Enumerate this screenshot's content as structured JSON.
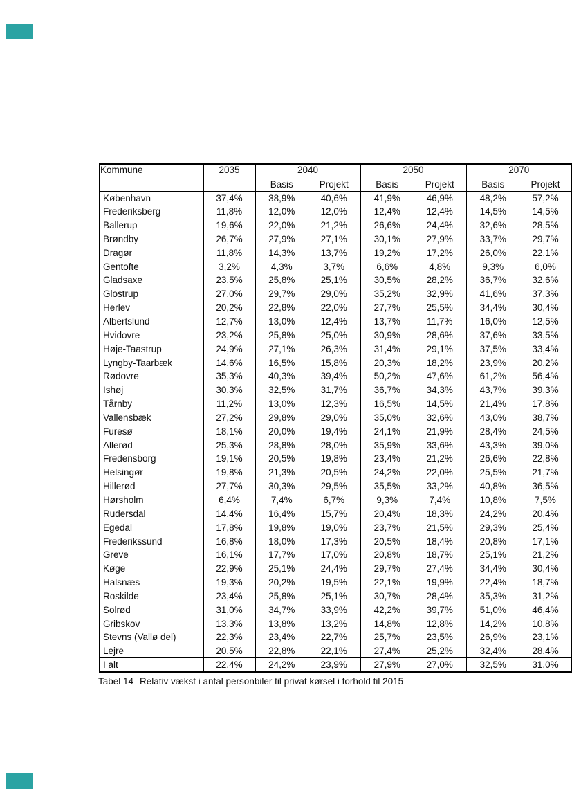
{
  "decorations": {
    "accent_color": "#2BA3A3",
    "border_color": "#000000",
    "text_color": "#101010"
  },
  "table": {
    "header": {
      "kommune_label": "Kommune",
      "year_2035": "2035",
      "year_2040": "2040",
      "year_2050": "2050",
      "year_2070": "2070",
      "basis_label": "Basis",
      "projekt_label": "Projekt"
    },
    "rows": [
      {
        "name": "København",
        "values": [
          "37,4%",
          "38,9%",
          "40,6%",
          "41,9%",
          "46,9%",
          "48,2%",
          "57,2%"
        ]
      },
      {
        "name": "Frederiksberg",
        "values": [
          "11,8%",
          "12,0%",
          "12,0%",
          "12,4%",
          "12,4%",
          "14,5%",
          "14,5%"
        ]
      },
      {
        "name": "Ballerup",
        "values": [
          "19,6%",
          "22,0%",
          "21,2%",
          "26,6%",
          "24,4%",
          "32,6%",
          "28,5%"
        ]
      },
      {
        "name": "Brøndby",
        "values": [
          "26,7%",
          "27,9%",
          "27,1%",
          "30,1%",
          "27,9%",
          "33,7%",
          "29,7%"
        ]
      },
      {
        "name": "Dragør",
        "values": [
          "11,8%",
          "14,3%",
          "13,7%",
          "19,2%",
          "17,2%",
          "26,0%",
          "22,1%"
        ]
      },
      {
        "name": "Gentofte",
        "values": [
          "3,2%",
          "4,3%",
          "3,7%",
          "6,6%",
          "4,8%",
          "9,3%",
          "6,0%"
        ]
      },
      {
        "name": "Gladsaxe",
        "values": [
          "23,5%",
          "25,8%",
          "25,1%",
          "30,5%",
          "28,2%",
          "36,7%",
          "32,6%"
        ]
      },
      {
        "name": "Glostrup",
        "values": [
          "27,0%",
          "29,7%",
          "29,0%",
          "35,2%",
          "32,9%",
          "41,6%",
          "37,3%"
        ]
      },
      {
        "name": "Herlev",
        "values": [
          "20,2%",
          "22,8%",
          "22,0%",
          "27,7%",
          "25,5%",
          "34,4%",
          "30,4%"
        ]
      },
      {
        "name": "Albertslund",
        "values": [
          "12,7%",
          "13,0%",
          "12,4%",
          "13,7%",
          "11,7%",
          "16,0%",
          "12,5%"
        ]
      },
      {
        "name": "Hvidovre",
        "values": [
          "23,2%",
          "25,8%",
          "25,0%",
          "30,9%",
          "28,6%",
          "37,6%",
          "33,5%"
        ]
      },
      {
        "name": "Høje-Taastrup",
        "values": [
          "24,9%",
          "27,1%",
          "26,3%",
          "31,4%",
          "29,1%",
          "37,5%",
          "33,4%"
        ]
      },
      {
        "name": "Lyngby-Taarbæk",
        "values": [
          "14,6%",
          "16,5%",
          "15,8%",
          "20,3%",
          "18,2%",
          "23,9%",
          "20,2%"
        ]
      },
      {
        "name": "Rødovre",
        "values": [
          "35,3%",
          "40,3%",
          "39,4%",
          "50,2%",
          "47,6%",
          "61,2%",
          "56,4%"
        ]
      },
      {
        "name": "Ishøj",
        "values": [
          "30,3%",
          "32,5%",
          "31,7%",
          "36,7%",
          "34,3%",
          "43,7%",
          "39,3%"
        ]
      },
      {
        "name": "Tårnby",
        "values": [
          "11,2%",
          "13,0%",
          "12,3%",
          "16,5%",
          "14,5%",
          "21,4%",
          "17,8%"
        ]
      },
      {
        "name": "Vallensbæk",
        "values": [
          "27,2%",
          "29,8%",
          "29,0%",
          "35,0%",
          "32,6%",
          "43,0%",
          "38,7%"
        ]
      },
      {
        "name": "Furesø",
        "values": [
          "18,1%",
          "20,0%",
          "19,4%",
          "24,1%",
          "21,9%",
          "28,4%",
          "24,5%"
        ]
      },
      {
        "name": "Allerød",
        "values": [
          "25,3%",
          "28,8%",
          "28,0%",
          "35,9%",
          "33,6%",
          "43,3%",
          "39,0%"
        ]
      },
      {
        "name": "Fredensborg",
        "values": [
          "19,1%",
          "20,5%",
          "19,8%",
          "23,4%",
          "21,2%",
          "26,6%",
          "22,8%"
        ]
      },
      {
        "name": "Helsingør",
        "values": [
          "19,8%",
          "21,3%",
          "20,5%",
          "24,2%",
          "22,0%",
          "25,5%",
          "21,7%"
        ]
      },
      {
        "name": "Hillerød",
        "values": [
          "27,7%",
          "30,3%",
          "29,5%",
          "35,5%",
          "33,2%",
          "40,8%",
          "36,5%"
        ]
      },
      {
        "name": "Hørsholm",
        "values": [
          "6,4%",
          "7,4%",
          "6,7%",
          "9,3%",
          "7,4%",
          "10,8%",
          "7,5%"
        ]
      },
      {
        "name": "Rudersdal",
        "values": [
          "14,4%",
          "16,4%",
          "15,7%",
          "20,4%",
          "18,3%",
          "24,2%",
          "20,4%"
        ]
      },
      {
        "name": "Egedal",
        "values": [
          "17,8%",
          "19,8%",
          "19,0%",
          "23,7%",
          "21,5%",
          "29,3%",
          "25,4%"
        ]
      },
      {
        "name": "Frederikssund",
        "values": [
          "16,8%",
          "18,0%",
          "17,3%",
          "20,5%",
          "18,4%",
          "20,8%",
          "17,1%"
        ]
      },
      {
        "name": "Greve",
        "values": [
          "16,1%",
          "17,7%",
          "17,0%",
          "20,8%",
          "18,7%",
          "25,1%",
          "21,2%"
        ]
      },
      {
        "name": "Køge",
        "values": [
          "22,9%",
          "25,1%",
          "24,4%",
          "29,7%",
          "27,4%",
          "34,4%",
          "30,4%"
        ]
      },
      {
        "name": "Halsnæs",
        "values": [
          "19,3%",
          "20,2%",
          "19,5%",
          "22,1%",
          "19,9%",
          "22,4%",
          "18,7%"
        ]
      },
      {
        "name": "Roskilde",
        "values": [
          "23,4%",
          "25,8%",
          "25,1%",
          "30,7%",
          "28,4%",
          "35,3%",
          "31,2%"
        ]
      },
      {
        "name": "Solrød",
        "values": [
          "31,0%",
          "34,7%",
          "33,9%",
          "42,2%",
          "39,7%",
          "51,0%",
          "46,4%"
        ]
      },
      {
        "name": "Gribskov",
        "values": [
          "13,3%",
          "13,8%",
          "13,2%",
          "14,8%",
          "12,8%",
          "14,2%",
          "10,8%"
        ]
      },
      {
        "name": "Stevns (Vallø del)",
        "values": [
          "22,3%",
          "23,4%",
          "22,7%",
          "25,7%",
          "23,5%",
          "26,9%",
          "23,1%"
        ]
      },
      {
        "name": "Lejre",
        "values": [
          "20,5%",
          "22,8%",
          "22,1%",
          "27,4%",
          "25,2%",
          "32,4%",
          "28,4%"
        ]
      }
    ],
    "total_row": {
      "name": "I alt",
      "values": [
        "22,4%",
        "24,2%",
        "23,9%",
        "27,9%",
        "27,0%",
        "32,5%",
        "31,0%"
      ]
    }
  },
  "caption": {
    "label": "Tabel 14",
    "text": "Relativ vækst i antal personbiler til privat kørsel i forhold til 2015"
  }
}
